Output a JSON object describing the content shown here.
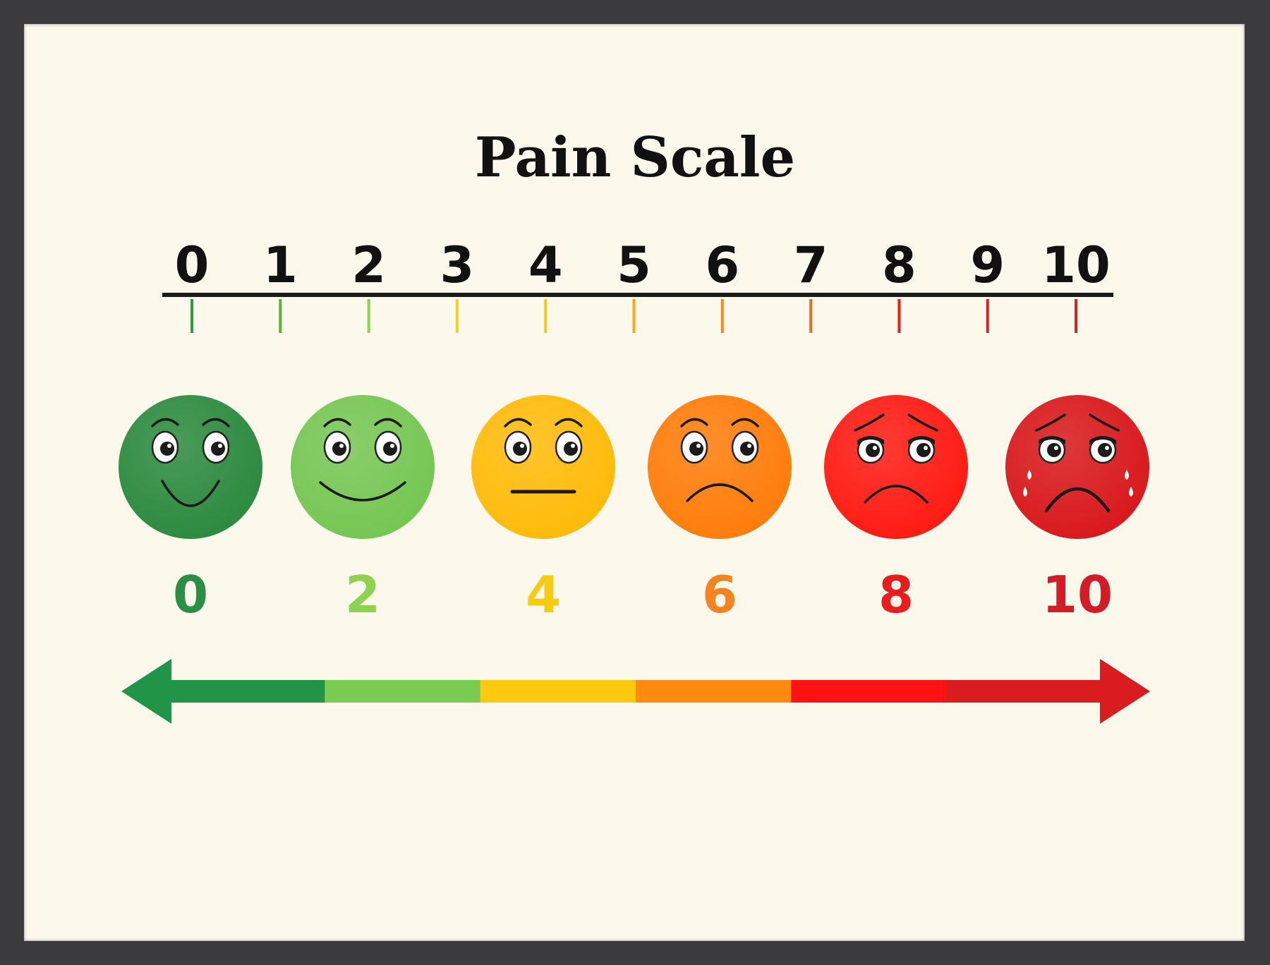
{
  "title": "Pain Scale",
  "scale": {
    "min": 0,
    "max": 10,
    "ticks": [
      {
        "value": 0,
        "label": "0",
        "color": "#2e9a44"
      },
      {
        "value": 1,
        "label": "1",
        "color": "#58b52d"
      },
      {
        "value": 2,
        "label": "2",
        "color": "#8fd24d"
      },
      {
        "value": 3,
        "label": "3",
        "color": "#f2d22a"
      },
      {
        "value": 4,
        "label": "4",
        "color": "#f4c81a"
      },
      {
        "value": 5,
        "label": "5",
        "color": "#f5a623"
      },
      {
        "value": 6,
        "label": "6",
        "color": "#f58a1f"
      },
      {
        "value": 7,
        "label": "7",
        "color": "#f26a22"
      },
      {
        "value": 8,
        "label": "8",
        "color": "#e81d1d"
      },
      {
        "value": 9,
        "label": "9",
        "color": "#e31b23"
      },
      {
        "value": 10,
        "label": "10",
        "color": "#d7262b"
      }
    ]
  },
  "faces": [
    {
      "value": 0,
      "label": "0",
      "expression": "smile-big",
      "face_color": "#2b8a3e",
      "label_color": "#2a8f43"
    },
    {
      "value": 2,
      "label": "2",
      "expression": "smile-wide",
      "face_color": "#75c653",
      "label_color": "#8fd24d"
    },
    {
      "value": 4,
      "label": "4",
      "expression": "neutral",
      "face_color": "#ffbb0a",
      "label_color": "#f5cc12"
    },
    {
      "value": 6,
      "label": "6",
      "expression": "frown",
      "face_color": "#ff7c0a",
      "label_color": "#f5841f"
    },
    {
      "value": 8,
      "label": "8",
      "expression": "sad",
      "face_color": "#ff1a12",
      "label_color": "#e81d1d"
    },
    {
      "value": 10,
      "label": "10",
      "expression": "crying",
      "face_color": "#d8181c",
      "label_color": "#d21d26"
    }
  ],
  "arrow": {
    "segment_colors": [
      "#229447",
      "#7acb52",
      "#ffc90f",
      "#ff8a0e",
      "#ff1212",
      "#d81c20"
    ],
    "left_head_color": "#229447",
    "right_head_color": "#d81c20"
  }
}
